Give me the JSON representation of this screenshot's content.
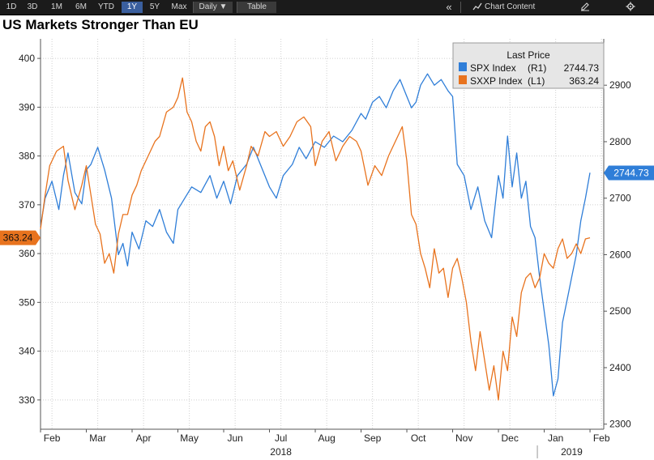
{
  "toolbar": {
    "ranges": [
      "1D",
      "3D",
      "1M",
      "6M",
      "YTD",
      "1Y",
      "5Y",
      "Max"
    ],
    "selected_range": "1Y",
    "frequency": "Daily ▼",
    "table": "Table",
    "collapse": "«",
    "chart_content": "Chart Content",
    "edit_icon": "pencil-icon",
    "settings_icon": "gear-icon"
  },
  "colors": {
    "spx": "#2f7ed8",
    "sxxp": "#e8731e",
    "badge_sxxp": "#e8731e",
    "badge_spx": "#2f7ed8"
  },
  "chart_data": {
    "type": "line",
    "title": "US Markets Stronger Than EU",
    "legend": {
      "title": "Last Price",
      "position": "top-right"
    },
    "x_labels": [
      "Feb",
      "Mar",
      "Apr",
      "May",
      "Jun",
      "Jul",
      "Aug",
      "Sep",
      "Oct",
      "Nov",
      "Dec",
      "Jan",
      "Feb"
    ],
    "x_years": [
      "2018",
      "2019"
    ],
    "x_range": [
      0,
      12.3
    ],
    "left_axis": {
      "ylim": [
        324,
        404
      ],
      "ticks": [
        330,
        340,
        350,
        360,
        370,
        380,
        390,
        400
      ]
    },
    "right_axis": {
      "ylim": [
        2291,
        2982
      ],
      "ticks": [
        2300,
        2400,
        2500,
        2600,
        2700,
        2800,
        2900
      ]
    },
    "series": [
      {
        "name": "SPX Index",
        "axis_tag": "(R1)",
        "last": "2744.73",
        "axis": "right",
        "x": [
          0,
          0.1,
          0.25,
          0.4,
          0.5,
          0.6,
          0.75,
          0.9,
          1.0,
          1.1,
          1.25,
          1.4,
          1.55,
          1.7,
          1.8,
          1.9,
          2.0,
          2.15,
          2.3,
          2.45,
          2.6,
          2.75,
          2.9,
          3.0,
          3.15,
          3.3,
          3.5,
          3.7,
          3.85,
          4.0,
          4.15,
          4.3,
          4.5,
          4.65,
          4.8,
          5.0,
          5.15,
          5.3,
          5.5,
          5.65,
          5.8,
          6.0,
          6.2,
          6.4,
          6.6,
          6.8,
          7.0,
          7.1,
          7.25,
          7.4,
          7.55,
          7.7,
          7.85,
          8.0,
          8.1,
          8.2,
          8.3,
          8.45,
          8.6,
          8.75,
          8.9,
          9.0,
          9.1,
          9.25,
          9.4,
          9.55,
          9.7,
          9.85,
          10.0,
          10.1,
          10.2,
          10.3,
          10.4,
          10.5,
          10.6,
          10.7,
          10.8,
          10.9,
          11.0,
          11.1,
          11.2,
          11.3,
          11.4,
          11.5,
          11.6,
          11.7,
          11.8,
          11.9,
          12.0
        ],
        "y": [
          2650,
          2700,
          2730,
          2680,
          2740,
          2780,
          2710,
          2690,
          2750,
          2760,
          2790,
          2750,
          2700,
          2600,
          2620,
          2580,
          2640,
          2610,
          2660,
          2650,
          2680,
          2640,
          2620,
          2680,
          2700,
          2720,
          2710,
          2740,
          2700,
          2730,
          2690,
          2740,
          2760,
          2790,
          2760,
          2720,
          2700,
          2740,
          2760,
          2790,
          2770,
          2800,
          2790,
          2810,
          2800,
          2820,
          2850,
          2840,
          2870,
          2880,
          2860,
          2890,
          2910,
          2880,
          2860,
          2870,
          2900,
          2920,
          2900,
          2910,
          2890,
          2880,
          2760,
          2740,
          2680,
          2720,
          2660,
          2630,
          2740,
          2700,
          2810,
          2720,
          2780,
          2700,
          2730,
          2650,
          2630,
          2560,
          2500,
          2440,
          2350,
          2380,
          2480,
          2520,
          2560,
          2600,
          2660,
          2700,
          2745
        ]
      },
      {
        "name": "SXXP Index",
        "axis_tag": "(L1)",
        "last": "363.24",
        "axis": "left",
        "x": [
          0,
          0.1,
          0.2,
          0.35,
          0.5,
          0.6,
          0.75,
          0.9,
          1.0,
          1.1,
          1.2,
          1.3,
          1.4,
          1.5,
          1.6,
          1.7,
          1.8,
          1.9,
          2.0,
          2.1,
          2.2,
          2.35,
          2.5,
          2.6,
          2.75,
          2.9,
          3.0,
          3.1,
          3.2,
          3.3,
          3.4,
          3.5,
          3.6,
          3.7,
          3.8,
          3.9,
          4.0,
          4.1,
          4.2,
          4.35,
          4.5,
          4.6,
          4.75,
          4.9,
          5.0,
          5.15,
          5.3,
          5.45,
          5.6,
          5.75,
          5.9,
          6.0,
          6.15,
          6.3,
          6.45,
          6.6,
          6.75,
          6.9,
          7.0,
          7.15,
          7.3,
          7.45,
          7.6,
          7.75,
          7.9,
          8.0,
          8.1,
          8.2,
          8.3,
          8.4,
          8.5,
          8.6,
          8.7,
          8.8,
          8.9,
          9.0,
          9.1,
          9.2,
          9.3,
          9.4,
          9.5,
          9.6,
          9.7,
          9.8,
          9.9,
          10.0,
          10.1,
          10.2,
          10.3,
          10.4,
          10.5,
          10.6,
          10.7,
          10.8,
          10.9,
          11.0,
          11.1,
          11.2,
          11.3,
          11.4,
          11.5,
          11.6,
          11.7,
          11.8,
          11.9,
          12.0
        ],
        "y": [
          365,
          372,
          378,
          381,
          382,
          375,
          369,
          374,
          378,
          372,
          366,
          364,
          358,
          360,
          356,
          364,
          368,
          368,
          372,
          374,
          377,
          380,
          383,
          384,
          389,
          390,
          392,
          396,
          389,
          387,
          383,
          381,
          386,
          387,
          384,
          378,
          382,
          377,
          379,
          373,
          378,
          382,
          380,
          385,
          384,
          385,
          382,
          384,
          387,
          388,
          386,
          378,
          383,
          385,
          379,
          382,
          384,
          383,
          381,
          374,
          378,
          376,
          380,
          383,
          386,
          379,
          368,
          366,
          360,
          357,
          353,
          361,
          356,
          357,
          351,
          357,
          359,
          355,
          350,
          342,
          336,
          344,
          338,
          332,
          337,
          330,
          340,
          336,
          347,
          343,
          352,
          355,
          356,
          353,
          355,
          360,
          358,
          357,
          361,
          363,
          359,
          360,
          362,
          360,
          363,
          363.24
        ]
      }
    ]
  }
}
